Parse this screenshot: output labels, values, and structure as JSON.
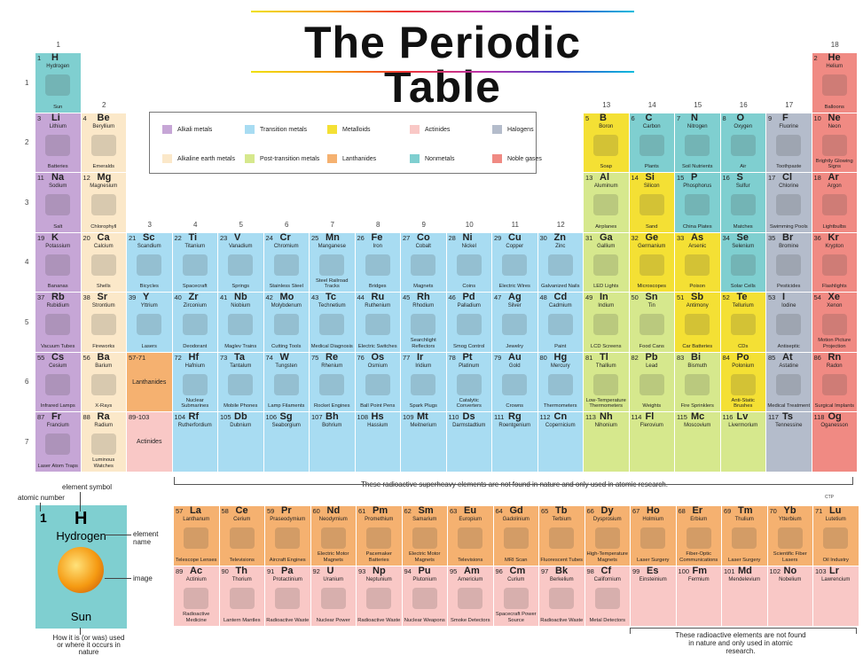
{
  "title": "The Periodic Table",
  "groups": [
    "1",
    "2",
    "3",
    "4",
    "5",
    "6",
    "7",
    "8",
    "9",
    "10",
    "11",
    "12",
    "13",
    "14",
    "15",
    "16",
    "17",
    "18"
  ],
  "periods": [
    "1",
    "2",
    "3",
    "4",
    "5",
    "6",
    "7"
  ],
  "legend": [
    {
      "label": "Alkali metals",
      "color": "#c6a6d6"
    },
    {
      "label": "Transition metals",
      "color": "#a8dcf2"
    },
    {
      "label": "Metalloids",
      "color": "#f4e034"
    },
    {
      "label": "Actinides",
      "color": "#f9c8c6"
    },
    {
      "label": "Halogens",
      "color": "#b4bccb"
    },
    {
      "label": "Alkaline earth metals",
      "color": "#fbe8c9"
    },
    {
      "label": "Post-transition metals",
      "color": "#d6e88d"
    },
    {
      "label": "Lanthanides",
      "color": "#f5b170"
    },
    {
      "label": "Nonmetals",
      "color": "#7fcfd0"
    },
    {
      "label": "Noble gases",
      "color": "#f08a83"
    }
  ],
  "notes": {
    "superheavy": "These radioactive superheavy elements are not found in nature and only used in atomic research.",
    "actinide_note": "These radioactive elements are not found in nature and only used in atomic research.",
    "credit": "CTP"
  },
  "key": {
    "number": "1",
    "symbol": "H",
    "name": "Hydrogen",
    "use": "Sun",
    "atomic_number_label": "atomic number",
    "element_symbol_label": "element symbol",
    "element_name_label": "element name",
    "image_label": "image",
    "use_label": "How it is (or was) used or where it occurs in nature"
  },
  "elements": [
    {
      "n": "1",
      "s": "H",
      "name": "Hydrogen",
      "use": "Sun",
      "col": 1,
      "row": 1,
      "cat": "nonmetal"
    },
    {
      "n": "2",
      "s": "He",
      "name": "Helium",
      "use": "Balloons",
      "col": 18,
      "row": 1,
      "cat": "noble"
    },
    {
      "n": "3",
      "s": "Li",
      "name": "Lithium",
      "use": "Batteries",
      "col": 1,
      "row": 2,
      "cat": "alkali"
    },
    {
      "n": "4",
      "s": "Be",
      "name": "Beryllium",
      "use": "Emeralds",
      "col": 2,
      "row": 2,
      "cat": "alkaline"
    },
    {
      "n": "5",
      "s": "B",
      "name": "Boron",
      "use": "Soap",
      "col": 13,
      "row": 2,
      "cat": "metalloid"
    },
    {
      "n": "6",
      "s": "C",
      "name": "Carbon",
      "use": "Plants",
      "col": 14,
      "row": 2,
      "cat": "nonmetal"
    },
    {
      "n": "7",
      "s": "N",
      "name": "Nitrogen",
      "use": "Soil Nutrients",
      "col": 15,
      "row": 2,
      "cat": "nonmetal"
    },
    {
      "n": "8",
      "s": "O",
      "name": "Oxygen",
      "use": "Air",
      "col": 16,
      "row": 2,
      "cat": "nonmetal"
    },
    {
      "n": "9",
      "s": "F",
      "name": "Fluorine",
      "use": "Toothpaste",
      "col": 17,
      "row": 2,
      "cat": "halogen"
    },
    {
      "n": "10",
      "s": "Ne",
      "name": "Neon",
      "use": "Brightly Glowing Signs",
      "col": 18,
      "row": 2,
      "cat": "noble"
    },
    {
      "n": "11",
      "s": "Na",
      "name": "Sodium",
      "use": "Salt",
      "col": 1,
      "row": 3,
      "cat": "alkali"
    },
    {
      "n": "12",
      "s": "Mg",
      "name": "Magnesium",
      "use": "Chlorophyll",
      "col": 2,
      "row": 3,
      "cat": "alkaline"
    },
    {
      "n": "13",
      "s": "Al",
      "name": "Aluminum",
      "use": "Airplanes",
      "col": 13,
      "row": 3,
      "cat": "post"
    },
    {
      "n": "14",
      "s": "Si",
      "name": "Silicon",
      "use": "Sand",
      "col": 14,
      "row": 3,
      "cat": "metalloid"
    },
    {
      "n": "15",
      "s": "P",
      "name": "Phosphorus",
      "use": "China Plates",
      "col": 15,
      "row": 3,
      "cat": "nonmetal"
    },
    {
      "n": "16",
      "s": "S",
      "name": "Sulfur",
      "use": "Matches",
      "col": 16,
      "row": 3,
      "cat": "nonmetal"
    },
    {
      "n": "17",
      "s": "Cl",
      "name": "Chlorine",
      "use": "Swimming Pools",
      "col": 17,
      "row": 3,
      "cat": "halogen"
    },
    {
      "n": "18",
      "s": "Ar",
      "name": "Argon",
      "use": "Lightbulbs",
      "col": 18,
      "row": 3,
      "cat": "noble"
    },
    {
      "n": "19",
      "s": "K",
      "name": "Potassium",
      "use": "Bananas",
      "col": 1,
      "row": 4,
      "cat": "alkali"
    },
    {
      "n": "20",
      "s": "Ca",
      "name": "Calcium",
      "use": "Shells",
      "col": 2,
      "row": 4,
      "cat": "alkaline"
    },
    {
      "n": "21",
      "s": "Sc",
      "name": "Scandium",
      "use": "Bicycles",
      "col": 3,
      "row": 4,
      "cat": "transition"
    },
    {
      "n": "22",
      "s": "Ti",
      "name": "Titanium",
      "use": "Spacecraft",
      "col": 4,
      "row": 4,
      "cat": "transition"
    },
    {
      "n": "23",
      "s": "V",
      "name": "Vanadium",
      "use": "Springs",
      "col": 5,
      "row": 4,
      "cat": "transition"
    },
    {
      "n": "24",
      "s": "Cr",
      "name": "Chromium",
      "use": "Stainless Steel",
      "col": 6,
      "row": 4,
      "cat": "transition"
    },
    {
      "n": "25",
      "s": "Mn",
      "name": "Manganese",
      "use": "Steel Railroad Tracks",
      "col": 7,
      "row": 4,
      "cat": "transition"
    },
    {
      "n": "26",
      "s": "Fe",
      "name": "Iron",
      "use": "Bridges",
      "col": 8,
      "row": 4,
      "cat": "transition"
    },
    {
      "n": "27",
      "s": "Co",
      "name": "Cobalt",
      "use": "Magnets",
      "col": 9,
      "row": 4,
      "cat": "transition"
    },
    {
      "n": "28",
      "s": "Ni",
      "name": "Nickel",
      "use": "Coins",
      "col": 10,
      "row": 4,
      "cat": "transition"
    },
    {
      "n": "29",
      "s": "Cu",
      "name": "Copper",
      "use": "Electric Wires",
      "col": 11,
      "row": 4,
      "cat": "transition"
    },
    {
      "n": "30",
      "s": "Zn",
      "name": "Zinc",
      "use": "Galvanized Nails",
      "col": 12,
      "row": 4,
      "cat": "transition"
    },
    {
      "n": "31",
      "s": "Ga",
      "name": "Gallium",
      "use": "LED Lights",
      "col": 13,
      "row": 4,
      "cat": "post"
    },
    {
      "n": "32",
      "s": "Ge",
      "name": "Germanium",
      "use": "Microscopes",
      "col": 14,
      "row": 4,
      "cat": "metalloid"
    },
    {
      "n": "33",
      "s": "As",
      "name": "Arsenic",
      "use": "Poison",
      "col": 15,
      "row": 4,
      "cat": "metalloid"
    },
    {
      "n": "34",
      "s": "Se",
      "name": "Selenium",
      "use": "Solar Cells",
      "col": 16,
      "row": 4,
      "cat": "nonmetal"
    },
    {
      "n": "35",
      "s": "Br",
      "name": "Bromine",
      "use": "Pesticides",
      "col": 17,
      "row": 4,
      "cat": "halogen"
    },
    {
      "n": "36",
      "s": "Kr",
      "name": "Krypton",
      "use": "Flashlights",
      "col": 18,
      "row": 4,
      "cat": "noble"
    },
    {
      "n": "37",
      "s": "Rb",
      "name": "Rubidium",
      "use": "Vacuum Tubes",
      "col": 1,
      "row": 5,
      "cat": "alkali"
    },
    {
      "n": "38",
      "s": "Sr",
      "name": "Strontium",
      "use": "Fireworks",
      "col": 2,
      "row": 5,
      "cat": "alkaline"
    },
    {
      "n": "39",
      "s": "Y",
      "name": "Yttrium",
      "use": "Lasers",
      "col": 3,
      "row": 5,
      "cat": "transition"
    },
    {
      "n": "40",
      "s": "Zr",
      "name": "Zirconium",
      "use": "Deodorant",
      "col": 4,
      "row": 5,
      "cat": "transition"
    },
    {
      "n": "41",
      "s": "Nb",
      "name": "Niobium",
      "use": "Maglev Trains",
      "col": 5,
      "row": 5,
      "cat": "transition"
    },
    {
      "n": "42",
      "s": "Mo",
      "name": "Molybdenum",
      "use": "Cutting Tools",
      "col": 6,
      "row": 5,
      "cat": "transition"
    },
    {
      "n": "43",
      "s": "Tc",
      "name": "Technetium",
      "use": "Medical Diagnosis",
      "col": 7,
      "row": 5,
      "cat": "transition"
    },
    {
      "n": "44",
      "s": "Ru",
      "name": "Ruthenium",
      "use": "Electric Switches",
      "col": 8,
      "row": 5,
      "cat": "transition"
    },
    {
      "n": "45",
      "s": "Rh",
      "name": "Rhodium",
      "use": "Searchlight Reflectors",
      "col": 9,
      "row": 5,
      "cat": "transition"
    },
    {
      "n": "46",
      "s": "Pd",
      "name": "Palladium",
      "use": "Smog Control",
      "col": 10,
      "row": 5,
      "cat": "transition"
    },
    {
      "n": "47",
      "s": "Ag",
      "name": "Silver",
      "use": "Jewelry",
      "col": 11,
      "row": 5,
      "cat": "transition"
    },
    {
      "n": "48",
      "s": "Cd",
      "name": "Cadmium",
      "use": "Paint",
      "col": 12,
      "row": 5,
      "cat": "transition"
    },
    {
      "n": "49",
      "s": "In",
      "name": "Indium",
      "use": "LCD Screens",
      "col": 13,
      "row": 5,
      "cat": "post"
    },
    {
      "n": "50",
      "s": "Sn",
      "name": "Tin",
      "use": "Food Cans",
      "col": 14,
      "row": 5,
      "cat": "post"
    },
    {
      "n": "51",
      "s": "Sb",
      "name": "Antimony",
      "use": "Car Batteries",
      "col": 15,
      "row": 5,
      "cat": "metalloid"
    },
    {
      "n": "52",
      "s": "Te",
      "name": "Tellurium",
      "use": "CDs",
      "col": 16,
      "row": 5,
      "cat": "metalloid"
    },
    {
      "n": "53",
      "s": "I",
      "name": "Iodine",
      "use": "Antiseptic",
      "col": 17,
      "row": 5,
      "cat": "halogen"
    },
    {
      "n": "54",
      "s": "Xe",
      "name": "Xenon",
      "use": "Motion Picture Projection",
      "col": 18,
      "row": 5,
      "cat": "noble"
    },
    {
      "n": "55",
      "s": "Cs",
      "name": "Cesium",
      "use": "Infrared Lamps",
      "col": 1,
      "row": 6,
      "cat": "alkali"
    },
    {
      "n": "56",
      "s": "Ba",
      "name": "Barium",
      "use": "X-Rays",
      "col": 2,
      "row": 6,
      "cat": "alkaline"
    },
    {
      "n": "72",
      "s": "Hf",
      "name": "Hafnium",
      "use": "Nuclear Submarines",
      "col": 4,
      "row": 6,
      "cat": "transition"
    },
    {
      "n": "73",
      "s": "Ta",
      "name": "Tantalum",
      "use": "Mobile Phones",
      "col": 5,
      "row": 6,
      "cat": "transition"
    },
    {
      "n": "74",
      "s": "W",
      "name": "Tungsten",
      "use": "Lamp Filaments",
      "col": 6,
      "row": 6,
      "cat": "transition"
    },
    {
      "n": "75",
      "s": "Re",
      "name": "Rhenium",
      "use": "Rocket Engines",
      "col": 7,
      "row": 6,
      "cat": "transition"
    },
    {
      "n": "76",
      "s": "Os",
      "name": "Osmium",
      "use": "Ball Point Pens",
      "col": 8,
      "row": 6,
      "cat": "transition"
    },
    {
      "n": "77",
      "s": "Ir",
      "name": "Iridium",
      "use": "Spark Plugs",
      "col": 9,
      "row": 6,
      "cat": "transition"
    },
    {
      "n": "78",
      "s": "Pt",
      "name": "Platinum",
      "use": "Catalytic Converters",
      "col": 10,
      "row": 6,
      "cat": "transition"
    },
    {
      "n": "79",
      "s": "Au",
      "name": "Gold",
      "use": "Crowns",
      "col": 11,
      "row": 6,
      "cat": "transition"
    },
    {
      "n": "80",
      "s": "Hg",
      "name": "Mercury",
      "use": "Thermometers",
      "col": 12,
      "row": 6,
      "cat": "transition"
    },
    {
      "n": "81",
      "s": "Tl",
      "name": "Thallium",
      "use": "Low-Temperature Thermometers",
      "col": 13,
      "row": 6,
      "cat": "post"
    },
    {
      "n": "82",
      "s": "Pb",
      "name": "Lead",
      "use": "Weights",
      "col": 14,
      "row": 6,
      "cat": "post"
    },
    {
      "n": "83",
      "s": "Bi",
      "name": "Bismuth",
      "use": "Fire Sprinklers",
      "col": 15,
      "row": 6,
      "cat": "post"
    },
    {
      "n": "84",
      "s": "Po",
      "name": "Polonium",
      "use": "Anti-Static Brushes",
      "col": 16,
      "row": 6,
      "cat": "metalloid"
    },
    {
      "n": "85",
      "s": "At",
      "name": "Astatine",
      "use": "Medical Treatment",
      "col": 17,
      "row": 6,
      "cat": "halogen"
    },
    {
      "n": "86",
      "s": "Rn",
      "name": "Radon",
      "use": "Surgical Implants",
      "col": 18,
      "row": 6,
      "cat": "noble"
    },
    {
      "n": "87",
      "s": "Fr",
      "name": "Francium",
      "use": "Laser Atom Traps",
      "col": 1,
      "row": 7,
      "cat": "alkali"
    },
    {
      "n": "88",
      "s": "Ra",
      "name": "Radium",
      "use": "Luminous Watches",
      "col": 2,
      "row": 7,
      "cat": "alkaline"
    },
    {
      "n": "104",
      "s": "Rf",
      "name": "Rutherfordium",
      "use": "",
      "col": 4,
      "row": 7,
      "cat": "transition"
    },
    {
      "n": "105",
      "s": "Db",
      "name": "Dubnium",
      "use": "",
      "col": 5,
      "row": 7,
      "cat": "transition"
    },
    {
      "n": "106",
      "s": "Sg",
      "name": "Seaborgium",
      "use": "",
      "col": 6,
      "row": 7,
      "cat": "transition"
    },
    {
      "n": "107",
      "s": "Bh",
      "name": "Bohrium",
      "use": "",
      "col": 7,
      "row": 7,
      "cat": "transition"
    },
    {
      "n": "108",
      "s": "Hs",
      "name": "Hassium",
      "use": "",
      "col": 8,
      "row": 7,
      "cat": "transition"
    },
    {
      "n": "109",
      "s": "Mt",
      "name": "Meitnerium",
      "use": "",
      "col": 9,
      "row": 7,
      "cat": "transition"
    },
    {
      "n": "110",
      "s": "Ds",
      "name": "Darmstadtium",
      "use": "",
      "col": 10,
      "row": 7,
      "cat": "transition"
    },
    {
      "n": "111",
      "s": "Rg",
      "name": "Roentgenium",
      "use": "",
      "col": 11,
      "row": 7,
      "cat": "transition"
    },
    {
      "n": "112",
      "s": "Cn",
      "name": "Copernicium",
      "use": "",
      "col": 12,
      "row": 7,
      "cat": "transition"
    },
    {
      "n": "113",
      "s": "Nh",
      "name": "Nihonium",
      "use": "",
      "col": 13,
      "row": 7,
      "cat": "post"
    },
    {
      "n": "114",
      "s": "Fl",
      "name": "Flerovium",
      "use": "",
      "col": 14,
      "row": 7,
      "cat": "post"
    },
    {
      "n": "115",
      "s": "Mc",
      "name": "Moscovium",
      "use": "",
      "col": 15,
      "row": 7,
      "cat": "post"
    },
    {
      "n": "116",
      "s": "Lv",
      "name": "Livermorium",
      "use": "",
      "col": 16,
      "row": 7,
      "cat": "post"
    },
    {
      "n": "117",
      "s": "Ts",
      "name": "Tennessine",
      "use": "",
      "col": 17,
      "row": 7,
      "cat": "halogen"
    },
    {
      "n": "118",
      "s": "Og",
      "name": "Oganesson",
      "use": "",
      "col": 18,
      "row": 7,
      "cat": "noble"
    }
  ],
  "ranges": [
    {
      "n": "57-71",
      "name": "Lanthanides",
      "col": 3,
      "row": 6,
      "cat": "lanthanide"
    },
    {
      "n": "89-103",
      "name": "Actinides",
      "col": 3,
      "row": 7,
      "cat": "actinide"
    }
  ],
  "lanthanides": [
    {
      "n": "57",
      "s": "La",
      "name": "Lanthanum",
      "use": "Telescope Lenses"
    },
    {
      "n": "58",
      "s": "Ce",
      "name": "Cerium",
      "use": "Televisions"
    },
    {
      "n": "59",
      "s": "Pr",
      "name": "Praseodymium",
      "use": "Aircraft Engines"
    },
    {
      "n": "60",
      "s": "Nd",
      "name": "Neodymium",
      "use": "Electric Motor Magnets"
    },
    {
      "n": "61",
      "s": "Pm",
      "name": "Promethium",
      "use": "Pacemaker Batteries"
    },
    {
      "n": "62",
      "s": "Sm",
      "name": "Samarium",
      "use": "Electric Motor Magnets"
    },
    {
      "n": "63",
      "s": "Eu",
      "name": "Europium",
      "use": "Televisions"
    },
    {
      "n": "64",
      "s": "Gd",
      "name": "Gadolinium",
      "use": "MRI Scan"
    },
    {
      "n": "65",
      "s": "Tb",
      "name": "Terbium",
      "use": "Fluorescent Tubes"
    },
    {
      "n": "66",
      "s": "Dy",
      "name": "Dysprosium",
      "use": "High-Temperature Magnets"
    },
    {
      "n": "67",
      "s": "Ho",
      "name": "Holmium",
      "use": "Laser Surgery"
    },
    {
      "n": "68",
      "s": "Er",
      "name": "Erbium",
      "use": "Fiber-Optic Communications"
    },
    {
      "n": "69",
      "s": "Tm",
      "name": "Thulium",
      "use": "Laser Surgery"
    },
    {
      "n": "70",
      "s": "Yb",
      "name": "Ytterbium",
      "use": "Scientific Fiber Lasers"
    },
    {
      "n": "71",
      "s": "Lu",
      "name": "Lutetium",
      "use": "Oil Industry"
    }
  ],
  "actinides": [
    {
      "n": "89",
      "s": "Ac",
      "name": "Actinium",
      "use": "Radioactive Medicine"
    },
    {
      "n": "90",
      "s": "Th",
      "name": "Thorium",
      "use": "Lantern Mantles"
    },
    {
      "n": "91",
      "s": "Pa",
      "name": "Protactinium",
      "use": "Radioactive Waste"
    },
    {
      "n": "92",
      "s": "U",
      "name": "Uranium",
      "use": "Nuclear Power"
    },
    {
      "n": "93",
      "s": "Np",
      "name": "Neptunium",
      "use": "Radioactive Waste"
    },
    {
      "n": "94",
      "s": "Pu",
      "name": "Plutonium",
      "use": "Nuclear Weapons"
    },
    {
      "n": "95",
      "s": "Am",
      "name": "Americium",
      "use": "Smoke Detectors"
    },
    {
      "n": "96",
      "s": "Cm",
      "name": "Curium",
      "use": "Spacecraft Power Source"
    },
    {
      "n": "97",
      "s": "Bk",
      "name": "Berkelium",
      "use": "Radioactive Waste"
    },
    {
      "n": "98",
      "s": "Cf",
      "name": "Californium",
      "use": "Metal Detectors"
    },
    {
      "n": "99",
      "s": "Es",
      "name": "Einsteinium",
      "use": ""
    },
    {
      "n": "100",
      "s": "Fm",
      "name": "Fermium",
      "use": ""
    },
    {
      "n": "101",
      "s": "Md",
      "name": "Mendelevium",
      "use": ""
    },
    {
      "n": "102",
      "s": "No",
      "name": "Nobelium",
      "use": ""
    },
    {
      "n": "103",
      "s": "Lr",
      "name": "Lawrencium",
      "use": ""
    }
  ],
  "colors": {
    "alkali": "#c6a6d6",
    "alkaline": "#fbe8c9",
    "transition": "#a8dcf2",
    "post": "#d6e88d",
    "metalloid": "#f4e034",
    "nonmetal": "#7fcfd0",
    "halogen": "#b4bccb",
    "noble": "#f08a83",
    "lanthanide": "#f5b170",
    "actinide": "#f9c8c6"
  }
}
